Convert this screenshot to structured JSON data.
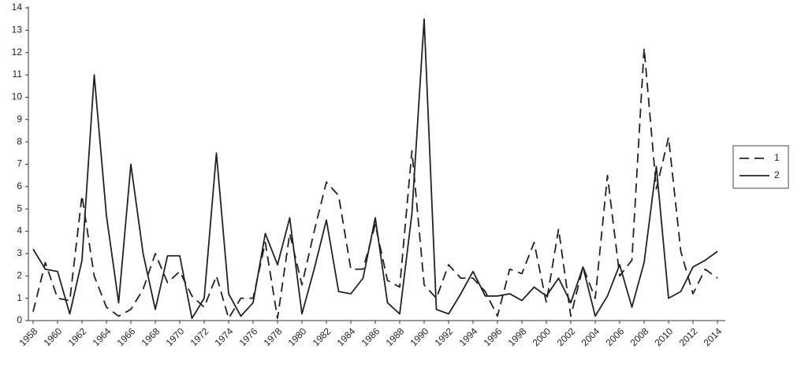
{
  "chart_data": {
    "type": "line",
    "x": [
      1958,
      1959,
      1960,
      1961,
      1962,
      1963,
      1964,
      1965,
      1966,
      1967,
      1968,
      1969,
      1970,
      1971,
      1972,
      1973,
      1974,
      1975,
      1976,
      1977,
      1978,
      1979,
      1980,
      1981,
      1982,
      1983,
      1984,
      1985,
      1986,
      1987,
      1988,
      1989,
      1990,
      1991,
      1992,
      1993,
      1994,
      1995,
      1996,
      1997,
      1998,
      1999,
      2000,
      2001,
      2002,
      2003,
      2004,
      2005,
      2006,
      2007,
      2008,
      2009,
      2010,
      2011,
      2012,
      2013,
      2014
    ],
    "series": [
      {
        "name": "1",
        "color": "#222222",
        "dash": true,
        "values": [
          0.4,
          2.6,
          1.0,
          0.9,
          5.6,
          2.0,
          0.6,
          0.2,
          0.5,
          1.4,
          3.0,
          1.7,
          2.2,
          1.1,
          0.6,
          2.0,
          0.1,
          1.0,
          1.0,
          3.5,
          0.1,
          3.9,
          1.6,
          4.0,
          6.2,
          5.6,
          2.3,
          2.3,
          4.3,
          1.8,
          1.5,
          7.6,
          1.6,
          1.0,
          2.5,
          1.9,
          1.9,
          1.3,
          0.2,
          2.3,
          2.1,
          3.5,
          0.8,
          4.1,
          0.2,
          2.4,
          1.0,
          6.5,
          2.0,
          2.7,
          12.2,
          5.9,
          8.2,
          3.1,
          1.2,
          2.3,
          1.9
        ]
      },
      {
        "name": "2",
        "color": "#222222",
        "dash": false,
        "values": [
          3.2,
          2.3,
          2.2,
          0.3,
          2.7,
          11.0,
          4.7,
          0.8,
          7.0,
          3.0,
          0.5,
          2.9,
          2.9,
          0.1,
          1.0,
          7.5,
          1.2,
          0.2,
          0.8,
          3.9,
          2.5,
          4.6,
          0.3,
          2.3,
          4.5,
          1.3,
          1.2,
          1.9,
          4.6,
          0.8,
          0.3,
          4.8,
          13.5,
          0.5,
          0.3,
          1.2,
          2.2,
          1.1,
          1.1,
          1.2,
          0.9,
          1.5,
          1.1,
          1.9,
          0.8,
          2.4,
          0.2,
          1.1,
          2.5,
          0.6,
          2.6,
          6.9,
          1.0,
          1.3,
          2.4,
          2.7,
          3.1
        ]
      }
    ],
    "xlim": [
      1958,
      2014
    ],
    "xticks": [
      1958,
      1960,
      1962,
      1964,
      1966,
      1968,
      1970,
      1972,
      1974,
      1976,
      1978,
      1980,
      1982,
      1984,
      1986,
      1988,
      1990,
      1992,
      1994,
      1996,
      1998,
      2000,
      2002,
      2004,
      2006,
      2008,
      2010,
      2012,
      2014
    ],
    "ylim": [
      0,
      14
    ],
    "yticks": [
      0,
      1,
      2,
      3,
      4,
      5,
      6,
      7,
      8,
      9,
      10,
      11,
      12,
      13,
      14
    ],
    "grid": false,
    "legend": "right"
  }
}
